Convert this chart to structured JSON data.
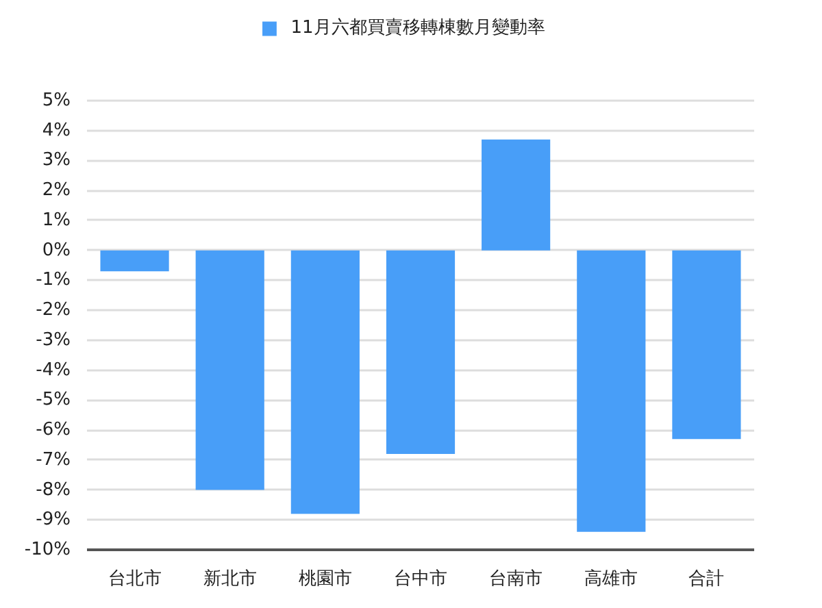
{
  "chart_data": {
    "type": "bar",
    "categories": [
      "台北市",
      "新北市",
      "桃園市",
      "台中市",
      "台南市",
      "高雄市",
      "合計"
    ],
    "series": [
      {
        "name": "11月六都買賣移轉棟數月變動率",
        "color": "#489ef8",
        "values": [
          -0.7,
          -8.0,
          -8.8,
          -6.8,
          3.7,
          -9.4,
          -6.3
        ]
      }
    ],
    "ylim": [
      -10,
      5
    ],
    "yticks": [
      {
        "value": 5,
        "label": "5%"
      },
      {
        "value": 4,
        "label": "4%"
      },
      {
        "value": 3,
        "label": "3%"
      },
      {
        "value": 2,
        "label": "2%"
      },
      {
        "value": 1,
        "label": "1%"
      },
      {
        "value": 0,
        "label": "0%"
      },
      {
        "value": -1,
        "label": "-1%"
      },
      {
        "value": -2,
        "label": "-2%"
      },
      {
        "value": -3,
        "label": "-3%"
      },
      {
        "value": -4,
        "label": "-4%"
      },
      {
        "value": -5,
        "label": "-5%"
      },
      {
        "value": -6,
        "label": "-6%"
      },
      {
        "value": -7,
        "label": "-7%"
      },
      {
        "value": -8,
        "label": "-8%"
      },
      {
        "value": -9,
        "label": "-9%"
      },
      {
        "value": -10,
        "label": "-10%"
      }
    ],
    "grid": "y",
    "legend": "top"
  }
}
